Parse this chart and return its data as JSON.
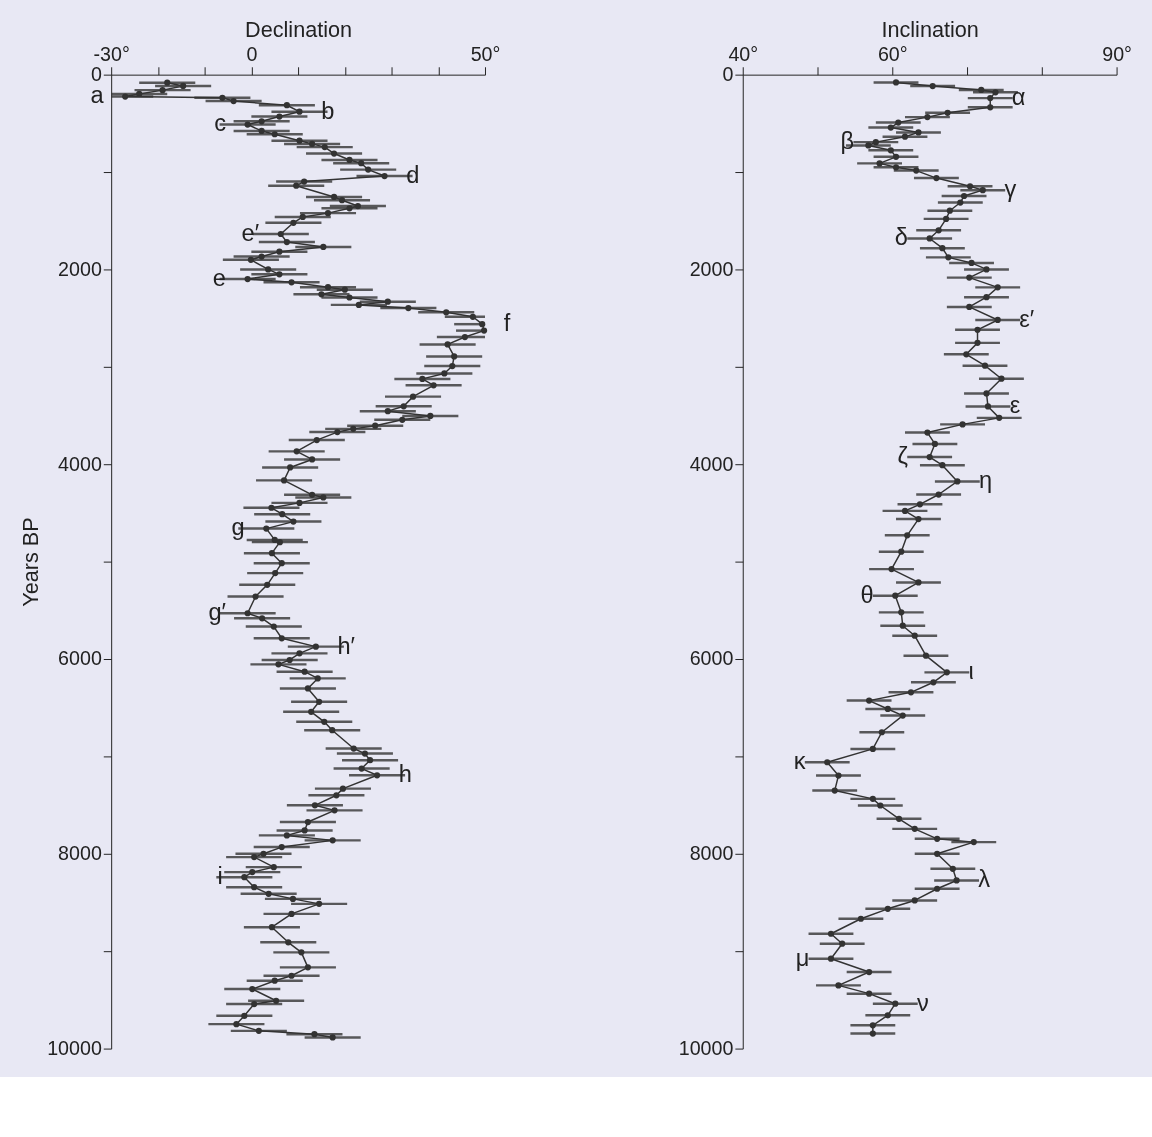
{
  "chart_data": [
    {
      "type": "line",
      "xlabel": "Declination",
      "ylabel": "Years BP",
      "marker": "circle",
      "line_style": "solid",
      "grid": false,
      "color": "#333333",
      "xlim": [
        -30,
        50
      ],
      "xticks": [
        {
          "value": -30,
          "label": "-30°"
        },
        {
          "value": -20,
          "label": null
        },
        {
          "value": -10,
          "label": null
        },
        0,
        {
          "value": 10,
          "label": null
        },
        {
          "value": 20,
          "label": null
        },
        {
          "value": 30,
          "label": null
        },
        {
          "value": 40,
          "label": null
        },
        {
          "value": 50,
          "label": "50°"
        }
      ],
      "ylim": [
        10000,
        0
      ],
      "yticks": [
        0,
        {
          "value": 1000,
          "label": null
        },
        2000,
        {
          "value": 3000,
          "label": null
        },
        4000,
        {
          "value": 5000,
          "label": null
        },
        6000,
        {
          "value": 7000,
          "label": null
        },
        8000,
        {
          "value": 9000,
          "label": null
        },
        10000
      ],
      "x": [
        -18,
        -14.6,
        -19,
        -24,
        -27,
        -6.2,
        -3.8,
        7.6,
        10.3,
        6,
        2.2,
        -0.8,
        2.2,
        5,
        10.3,
        13,
        15.7,
        17.7,
        21,
        23.5,
        25,
        28.5,
        11.3,
        9.6,
        17.7,
        19.4,
        22.8,
        21,
        16.4,
        11,
        9,
        6.3,
        7.6,
        15.4,
        6,
        2.2,
        -0.1,
        3.6,
        6,
        -0.8,
        8.6,
        16.4,
        20,
        15,
        21,
        29.2,
        23,
        33.6,
        41.7,
        47.4,
        49.4,
        49.8,
        45.7,
        42,
        43.4,
        43,
        41.3,
        36.6,
        39,
        34.6,
        32.6,
        29.2,
        38.3,
        32.3,
        26.5,
        21.8,
        18.4,
        14,
        9.7,
        13,
        8.3,
        7,
        13,
        15.4,
        10.3,
        4.3,
        6.6,
        9,
        3.2,
        5,
        6.1,
        4.4,
        6.5,
        5.1,
        3.4,
        0.9,
        -0.8,
        2.3,
        4.8,
        6.5,
        13.8,
        10.3,
        8.2,
        5.8,
        11.4,
        14.2,
        12.1,
        14.5,
        12.8,
        15.6,
        17.3,
        21.9,
        24.3,
        25.4,
        23.6,
        26.9,
        19.6,
        18.2,
        13.6,
        17.8,
        12.1,
        11.4,
        7.6,
        17.4,
        6.5,
        2.6,
        0.6,
        4.8,
        0.2,
        -1.5,
        0.6,
        3.7,
        8.9,
        14.5,
        8.6,
        4.4,
        7.9,
        10.7,
        12.1,
        8.6,
        5,
        0.2,
        5.3,
        0.6,
        -1.5,
        -3.2,
        1.6,
        13.5,
        17.4
      ],
      "values": [
        83,
        116,
        159,
        198,
        225,
        238,
        271,
        314,
        380,
        430,
        479,
        512,
        578,
        612,
        678,
        711,
        744,
        810,
        876,
        909,
        975,
        1041,
        1098,
        1140,
        1256,
        1289,
        1349,
        1372,
        1422,
        1461,
        1521,
        1636,
        1719,
        1769,
        1818,
        1868,
        1901,
        2000,
        2050,
        2099,
        2132,
        2182,
        2208,
        2255,
        2288,
        2331,
        2364,
        2397,
        2440,
        2486,
        2562,
        2628,
        2694,
        2770,
        2893,
        2992,
        3068,
        3124,
        3190,
        3306,
        3405,
        3455,
        3504,
        3544,
        3604,
        3637,
        3670,
        3752,
        3868,
        3951,
        4033,
        4166,
        4314,
        4341,
        4397,
        4447,
        4513,
        4589,
        4661,
        4777,
        4800,
        4913,
        5016,
        5118,
        5238,
        5359,
        5530,
        5582,
        5667,
        5787,
        5873,
        5942,
        6010,
        6055,
        6130,
        6199,
        6302,
        6439,
        6542,
        6645,
        6731,
        6919,
        6971,
        7039,
        7125,
        7194,
        7331,
        7399,
        7502,
        7554,
        7674,
        7760,
        7811,
        7862,
        7931,
        8000,
        8034,
        8137,
        8188,
        8240,
        8343,
        8411,
        8463,
        8514,
        8617,
        8754,
        8909,
        9012,
        9166,
        9252,
        9303,
        9389,
        9509,
        9543,
        9663,
        9749,
        9818,
        9852,
        9886
      ],
      "xerrors": [
        6,
        6,
        6,
        [
          -30,
          -18
        ],
        [
          -30,
          -21
        ],
        6,
        6,
        6,
        6,
        6,
        6,
        6,
        6,
        6,
        6,
        6,
        6,
        6,
        6,
        6,
        6,
        6,
        6,
        6,
        6,
        6,
        6,
        6,
        6,
        6,
        6,
        6,
        6,
        6,
        6,
        6,
        6,
        6,
        6,
        6,
        6,
        6,
        6,
        6,
        6,
        6,
        6,
        6,
        6,
        [
          41.4,
          50
        ],
        [
          43.4,
          50
        ],
        [
          43.8,
          50
        ],
        [
          39.7,
          50
        ],
        6,
        6,
        6,
        6,
        6,
        6,
        6,
        6,
        6,
        6,
        6,
        6,
        6,
        6,
        6,
        6,
        6,
        6,
        6,
        6,
        6,
        6,
        6,
        6,
        6,
        6,
        6,
        6,
        6,
        6,
        6,
        6,
        6,
        6,
        6,
        6,
        6,
        6,
        6,
        6,
        6,
        6,
        6,
        6,
        6,
        6,
        6,
        6,
        6,
        6,
        6,
        6,
        6,
        6,
        6,
        6,
        6,
        6,
        6,
        6,
        6,
        6,
        6,
        6,
        6,
        6,
        6,
        6,
        6,
        6,
        6,
        6,
        6,
        6,
        6,
        6,
        6,
        6,
        6,
        6,
        6,
        6,
        6,
        6,
        6,
        6
      ],
      "annotations": [
        {
          "text": "a",
          "x": -27,
          "y": 225
        },
        {
          "text": "b",
          "x": 10.3,
          "y": 380
        },
        {
          "text": "c",
          "x": -0.8,
          "y": 512
        },
        {
          "text": "d",
          "x": 28.5,
          "y": 1041
        },
        {
          "text": "e′",
          "x": 6.3,
          "y": 1636
        },
        {
          "text": "e",
          "x": -0.8,
          "y": 2099
        },
        {
          "text": "f",
          "x": 49.4,
          "y": 2562
        },
        {
          "text": "g",
          "x": 3.2,
          "y": 4661
        },
        {
          "text": "g′",
          "x": -0.8,
          "y": 5530
        },
        {
          "text": "h′",
          "x": 13.8,
          "y": 5873
        },
        {
          "text": "h",
          "x": 26.9,
          "y": 7194
        },
        {
          "text": "i",
          "x": -1.5,
          "y": 8240
        }
      ]
    },
    {
      "type": "line",
      "xlabel": "Inclination",
      "marker": "circle",
      "line_style": "solid",
      "grid": false,
      "color": "#333333",
      "xlim": [
        40,
        90
      ],
      "xticks": [
        {
          "value": 40,
          "label": "40°"
        },
        {
          "value": 50,
          "label": null
        },
        {
          "value": 60,
          "label": "60°"
        },
        {
          "value": 70,
          "label": null
        },
        {
          "value": 80,
          "label": null
        },
        {
          "value": 90,
          "label": "90°"
        }
      ],
      "ylim": [
        10000,
        0
      ],
      "yticks": [
        0,
        {
          "value": 1000,
          "label": null
        },
        2000,
        {
          "value": 3000,
          "label": null
        },
        4000,
        {
          "value": 5000,
          "label": null
        },
        6000,
        {
          "value": 7000,
          "label": null
        },
        8000,
        {
          "value": 9000,
          "label": null
        },
        10000
      ],
      "x": [
        60.5,
        65.4,
        71.9,
        73.8,
        73.1,
        73.1,
        67.4,
        64.7,
        60.8,
        59.8,
        63.5,
        61.7,
        57.8,
        56.8,
        59.8,
        60.5,
        58.3,
        60.5,
        63.2,
        65.9,
        70.4,
        72.1,
        69.6,
        69.1,
        67.7,
        67.2,
        66.2,
        65,
        66.7,
        67.5,
        70.6,
        72.6,
        70.3,
        74.1,
        72.6,
        70.3,
        74.1,
        71.4,
        71.4,
        69.9,
        72.4,
        74.6,
        72.6,
        72.8,
        74.3,
        69.4,
        64.7,
        65.7,
        65,
        66.7,
        68.7,
        66.2,
        63.7,
        61.7,
        63.5,
        62,
        61.2,
        59.9,
        63.5,
        60.4,
        61.2,
        61.4,
        63,
        64.5,
        67.3,
        65.5,
        62.5,
        56.9,
        59.4,
        61.4,
        58.6,
        57.4,
        51.3,
        52.8,
        52.3,
        57.4,
        58.4,
        60.9,
        63,
        66,
        70.9,
        66,
        68.1,
        68.6,
        66,
        63,
        59.4,
        55.8,
        51.8,
        53.3,
        51.8,
        56.9,
        52.8,
        56.9,
        60.4,
        59.4,
        57.4,
        57.4
      ],
      "values": [
        80,
        117,
        157,
        181,
        241,
        335,
        392,
        436,
        492,
        543,
        593,
        637,
        693,
        727,
        777,
        844,
        911,
        951,
        985,
        1062,
        1146,
        1186,
        1246,
        1313,
        1397,
        1481,
        1598,
        1682,
        1782,
        1876,
        1933,
        2000,
        2084,
        2184,
        2285,
        2385,
        2519,
        2620,
        2754,
        2871,
        2988,
        3122,
        3273,
        3407,
        3524,
        3591,
        3675,
        3792,
        3926,
        4010,
        4177,
        4311,
        4412,
        4479,
        4563,
        4730,
        4898,
        5077,
        5214,
        5350,
        5521,
        5658,
        5761,
        5966,
        6137,
        6239,
        6342,
        6427,
        6513,
        6581,
        6752,
        6923,
        7060,
        7197,
        7351,
        7436,
        7504,
        7641,
        7744,
        7846,
        7880,
        8000,
        8154,
        8274,
        8359,
        8479,
        8565,
        8667,
        8821,
        8923,
        9077,
        9214,
        9351,
        9436,
        9539,
        9658,
        9761,
        9846
      ],
      "xerrors": [
        3,
        3,
        3,
        3,
        3,
        3,
        3,
        3,
        3,
        3,
        3,
        3,
        3,
        3,
        3,
        3,
        3,
        3,
        3,
        3,
        3,
        3,
        3,
        3,
        3,
        3,
        3,
        3,
        3,
        3,
        3,
        3,
        3,
        3,
        3,
        3,
        3,
        3,
        3,
        3,
        3,
        3,
        3,
        3,
        3,
        3,
        3,
        3,
        3,
        3,
        3,
        3,
        3,
        3,
        3,
        3,
        3,
        3,
        3,
        3,
        3,
        3,
        3,
        3,
        3,
        3,
        3,
        3,
        3,
        3,
        3,
        3,
        3,
        3,
        3,
        3,
        3,
        3,
        3,
        3,
        3,
        3,
        3,
        3,
        3,
        3,
        3,
        3,
        3,
        3,
        3,
        3,
        3,
        3,
        3,
        3,
        3,
        3
      ],
      "annotations": [
        {
          "text": "α",
          "x": 73.1,
          "y": 241
        },
        {
          "text": "β",
          "x": 57.8,
          "y": 693
        },
        {
          "text": "γ",
          "x": 72.1,
          "y": 1186
        },
        {
          "text": "δ",
          "x": 65,
          "y": 1682
        },
        {
          "text": "ε′",
          "x": 74.1,
          "y": 2519
        },
        {
          "text": "ε",
          "x": 72.8,
          "y": 3407
        },
        {
          "text": "ζ",
          "x": 65,
          "y": 3926
        },
        {
          "text": "η",
          "x": 68.7,
          "y": 4177
        },
        {
          "text": "θ",
          "x": 60.4,
          "y": 5350
        },
        {
          "text": "ι",
          "x": 67.3,
          "y": 6137
        },
        {
          "text": "κ",
          "x": 51.3,
          "y": 7060
        },
        {
          "text": "λ",
          "x": 68.6,
          "y": 8274
        },
        {
          "text": "μ",
          "x": 51.8,
          "y": 9077
        },
        {
          "text": "ν",
          "x": 60.4,
          "y": 9539
        }
      ]
    }
  ]
}
